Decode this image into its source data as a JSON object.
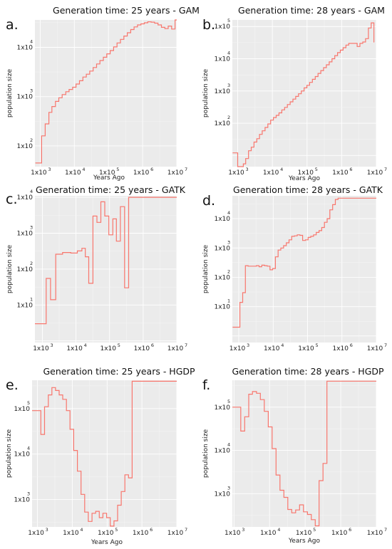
{
  "figure": {
    "colors": {
      "series": "#f8766d",
      "panel_bg": "#ebebeb",
      "grid": "#ffffff"
    }
  },
  "chart_data": [
    {
      "type": "line",
      "step": true,
      "letter": "a.",
      "title": "Generation time: 25 years - GAM",
      "xlabel": "Years Ago",
      "ylabel": "population size",
      "xscale": "log",
      "yscale": "log",
      "xlim": [
        700,
        10000000
      ],
      "ylim": [
        38,
        36000
      ],
      "xticks": [
        {
          "base": "1x10",
          "exp": "3",
          "v": 1000
        },
        {
          "base": "1x10",
          "exp": "4",
          "v": 10000
        },
        {
          "base": "1x10",
          "exp": "5",
          "v": 100000
        },
        {
          "base": "1x10",
          "exp": "6",
          "v": 1000000
        },
        {
          "base": "1x10",
          "exp": "7",
          "v": 10000000
        }
      ],
      "yticks": [
        {
          "base": "1x10",
          "exp": "2",
          "v": 100
        },
        {
          "base": "1x10",
          "exp": "3",
          "v": 1000
        },
        {
          "base": "1x10",
          "exp": "4",
          "v": 10000
        }
      ],
      "series": [
        {
          "x": [
            720,
            900,
            1100,
            1400,
            1800,
            2200,
            2800,
            3500,
            4400,
            5600,
            7000,
            8900,
            11200,
            14100,
            17800,
            22400,
            28200,
            35500,
            44700,
            56200,
            70800,
            89100,
            112000,
            141000,
            178000,
            224000,
            282000,
            355000,
            447000,
            562000,
            708000,
            891000,
            1120000,
            1410000,
            1780000,
            2240000,
            2820000,
            3550000,
            4470000,
            5620000,
            7080000,
            8910000,
            10000000
          ],
          "y": [
            45,
            45,
            160,
            280,
            480,
            630,
            800,
            950,
            1100,
            1260,
            1400,
            1550,
            1800,
            2100,
            2500,
            2850,
            3300,
            3900,
            4600,
            5400,
            6300,
            7400,
            8600,
            10200,
            12300,
            14500,
            17000,
            19800,
            23000,
            26000,
            28500,
            30000,
            31500,
            33000,
            32500,
            31000,
            28500,
            25500,
            24000,
            27000,
            23500,
            36000,
            36000
          ]
        }
      ]
    },
    {
      "type": "line",
      "step": true,
      "letter": "b.",
      "title": "Generation time: 28 years - GAM",
      "xlabel": "Years Ago",
      "ylabel": "population size",
      "xscale": "log",
      "yscale": "log",
      "xlim": [
        700,
        10000000
      ],
      "ylim": [
        4.5,
        160000
      ],
      "xticks": [
        {
          "base": "1x10",
          "exp": "3",
          "v": 1000
        },
        {
          "base": "1x10",
          "exp": "4",
          "v": 10000
        },
        {
          "base": "1x10",
          "exp": "5",
          "v": 100000
        },
        {
          "base": "1x10",
          "exp": "6",
          "v": 1000000
        },
        {
          "base": "1x10",
          "exp": "7",
          "v": 10000000
        }
      ],
      "yticks": [
        {
          "base": "1x10",
          "exp": "2",
          "v": 100
        },
        {
          "base": "1x10",
          "exp": "3",
          "v": 1000
        },
        {
          "base": "1x10",
          "exp": "4",
          "v": 10000
        },
        {
          "base": "1x10",
          "exp": "5",
          "v": 100000
        }
      ],
      "series": [
        {
          "x": [
            710,
            850,
            1000,
            1200,
            1450,
            1700,
            2050,
            2450,
            2950,
            3550,
            4250,
            5100,
            6150,
            7400,
            8900,
            10700,
            12900,
            15500,
            18700,
            22500,
            27100,
            32600,
            39200,
            47200,
            56800,
            68400,
            82300,
            99000,
            119000,
            143000,
            173000,
            208000,
            250000,
            301000,
            362000,
            436000,
            525000,
            632000,
            761000,
            916000,
            1100000,
            1330000,
            1600000,
            1930000,
            2320000,
            2800000,
            3370000,
            4060000,
            4900000,
            5900000,
            7100000,
            8500000
          ],
          "y": [
            12,
            12,
            4.5,
            4.2,
            5.5,
            8,
            14,
            18,
            26,
            33,
            45,
            58,
            74,
            95,
            125,
            150,
            175,
            210,
            260,
            310,
            380,
            460,
            560,
            680,
            820,
            1000,
            1250,
            1500,
            1850,
            2300,
            2800,
            3500,
            4300,
            5300,
            6500,
            8000,
            10000,
            12500,
            15500,
            18500,
            22000,
            26500,
            30000,
            30000,
            30000,
            24000,
            30000,
            33000,
            42000,
            90000,
            130000,
            32000
          ]
        }
      ]
    },
    {
      "type": "line",
      "step": true,
      "letter": "c.",
      "title": "Generation time: 25 years - GATK",
      "xlabel": "",
      "ylabel": "population size",
      "xscale": "log",
      "yscale": "log",
      "xlim": [
        600,
        10000000
      ],
      "ylim": [
        0.9,
        11000
      ],
      "xticks": [
        {
          "base": "1x10",
          "exp": "3",
          "v": 1000
        },
        {
          "base": "1x10",
          "exp": "4",
          "v": 10000
        },
        {
          "base": "1x10",
          "exp": "5",
          "v": 100000
        },
        {
          "base": "1x10",
          "exp": "6",
          "v": 1000000
        },
        {
          "base": "1x10",
          "exp": "7",
          "v": 10000000
        }
      ],
      "yticks": [
        {
          "base": "1x10",
          "exp": "1",
          "v": 10
        },
        {
          "base": "1x10",
          "exp": "2",
          "v": 100
        },
        {
          "base": "1x10",
          "exp": "3",
          "v": 1000
        },
        {
          "base": "1x10",
          "exp": "4",
          "v": 10000
        }
      ],
      "series": [
        {
          "x": [
            600,
            950,
            1300,
            1750,
            2500,
            4000,
            7000,
            11000,
            15000,
            19000,
            24000,
            32000,
            42000,
            55000,
            72000,
            95000,
            125000,
            160000,
            210000,
            280000,
            370000,
            490000,
            650000,
            850000,
            1000000,
            10000000
          ],
          "y": [
            3,
            3,
            55,
            14,
            260,
            290,
            280,
            320,
            380,
            220,
            40,
            3000,
            2000,
            7500,
            3000,
            900,
            2500,
            600,
            5500,
            30,
            10000,
            10000,
            10000,
            10000,
            10000,
            10000
          ]
        }
      ]
    },
    {
      "type": "line",
      "step": true,
      "letter": "d.",
      "title": "Generation time: 28 years - GATK",
      "xlabel": "",
      "ylabel": "population size",
      "xscale": "log",
      "yscale": "log",
      "xlim": [
        650,
        10000000
      ],
      "ylim": [
        0.6,
        60000
      ],
      "xticks": [
        {
          "base": "1x10",
          "exp": "3",
          "v": 1000
        },
        {
          "base": "1x10",
          "exp": "4",
          "v": 10000
        },
        {
          "base": "1x10",
          "exp": "5",
          "v": 100000
        },
        {
          "base": "1x10",
          "exp": "6",
          "v": 1000000
        },
        {
          "base": "1x10",
          "exp": "7",
          "v": 10000000
        }
      ],
      "yticks": [
        {
          "base": "1x10",
          "exp": "1",
          "v": 10
        },
        {
          "base": "1x10",
          "exp": "2",
          "v": 100
        },
        {
          "base": "1x10",
          "exp": "3",
          "v": 1000
        },
        {
          "base": "1x10",
          "exp": "4",
          "v": 10000
        }
      ],
      "series": [
        {
          "x": [
            660,
            900,
            1080,
            1300,
            1560,
            1870,
            2240,
            2700,
            3240,
            3890,
            4670,
            5600,
            6720,
            8060,
            9680,
            11600,
            13900,
            16700,
            20100,
            24100,
            28900,
            34700,
            41600,
            50000,
            60000,
            72000,
            86400,
            104000,
            124000,
            149000,
            179000,
            215000,
            258000,
            310000,
            372000,
            446000,
            535000,
            642000,
            770000,
            924000,
            1110000,
            1330000,
            1600000,
            1920000,
            2300000,
            2760000,
            10000000
          ],
          "y": [
            2,
            2,
            14,
            30,
            250,
            240,
            240,
            240,
            250,
            230,
            260,
            250,
            240,
            180,
            200,
            500,
            850,
            1000,
            1200,
            1500,
            1900,
            2500,
            2600,
            2800,
            2700,
            1800,
            1900,
            2300,
            2500,
            2800,
            3400,
            3900,
            5000,
            7500,
            10000,
            20000,
            30000,
            45000,
            50000,
            50000,
            50000,
            50000,
            50000,
            50000,
            50000,
            50000,
            50000
          ]
        }
      ]
    },
    {
      "type": "line",
      "step": true,
      "letter": "e.",
      "title": "Generation time: 25 years - HGDP",
      "xlabel": "Years Ago",
      "ylabel": "population size",
      "xscale": "log",
      "yscale": "log",
      "xlim": [
        700,
        10000000
      ],
      "ylim": [
        250,
        420000
      ],
      "xticks": [
        {
          "base": "1x10",
          "exp": "3",
          "v": 1000
        },
        {
          "base": "1x10",
          "exp": "4",
          "v": 10000
        },
        {
          "base": "1x10",
          "exp": "5",
          "v": 100000
        },
        {
          "base": "1x10",
          "exp": "6",
          "v": 1000000
        },
        {
          "base": "1x10",
          "exp": "7",
          "v": 10000000
        }
      ],
      "yticks": [
        {
          "base": "1x10",
          "exp": "3",
          "v": 1000
        },
        {
          "base": "1x10",
          "exp": "4",
          "v": 10000
        },
        {
          "base": "1x10",
          "exp": "5",
          "v": 100000
        }
      ],
      "series": [
        {
          "x": [
            700,
            1000,
            1250,
            1600,
            2050,
            2600,
            3300,
            4200,
            5300,
            6800,
            8600,
            11000,
            14000,
            17800,
            22700,
            28900,
            36800,
            46800,
            59600,
            75900,
            96600,
            123000,
            157000,
            200000,
            254000,
            323000,
            412000,
            524000,
            667000,
            850000,
            10000000
          ],
          "y": [
            90000,
            90000,
            27000,
            110000,
            200000,
            290000,
            250000,
            200000,
            160000,
            90000,
            35000,
            12000,
            4200,
            1300,
            530,
            330,
            500,
            550,
            400,
            500,
            400,
            260,
            340,
            750,
            1500,
            3500,
            3000,
            400000,
            400000,
            400000,
            400000
          ]
        }
      ]
    },
    {
      "type": "line",
      "step": true,
      "letter": "f.",
      "title": "Generation time: 28 years - HGDP",
      "xlabel": "Years Ago",
      "ylabel": "population size",
      "xscale": "log",
      "yscale": "log",
      "xlim": [
        900,
        10000000
      ],
      "ylim": [
        170,
        420000
      ],
      "xticks": [
        {
          "base": "1x10",
          "exp": "3",
          "v": 1000
        },
        {
          "base": "1x10",
          "exp": "4",
          "v": 10000
        },
        {
          "base": "1x10",
          "exp": "5",
          "v": 100000
        },
        {
          "base": "1x10",
          "exp": "6",
          "v": 1000000
        },
        {
          "base": "1x10",
          "exp": "7",
          "v": 10000000
        }
      ],
      "yticks": [
        {
          "base": "1x10",
          "exp": "3",
          "v": 1000
        },
        {
          "base": "1x10",
          "exp": "4",
          "v": 10000
        },
        {
          "base": "1x10",
          "exp": "5",
          "v": 100000
        }
      ],
      "series": [
        {
          "x": [
            900,
            1200,
            1550,
            2000,
            2600,
            3300,
            4300,
            5500,
            7100,
            9200,
            11800,
            15200,
            19600,
            25300,
            32600,
            42000,
            54100,
            69700,
            89800,
            116000,
            149000,
            192000,
            247000,
            318000,
            410000,
            528000,
            680000,
            876000,
            10000000
          ],
          "y": [
            100000,
            100000,
            28000,
            60000,
            200000,
            230000,
            210000,
            150000,
            80000,
            35000,
            11000,
            2700,
            1200,
            820,
            430,
            360,
            420,
            550,
            380,
            330,
            250,
            180,
            2000,
            5000,
            400000,
            400000,
            400000,
            400000,
            400000
          ]
        }
      ]
    }
  ]
}
